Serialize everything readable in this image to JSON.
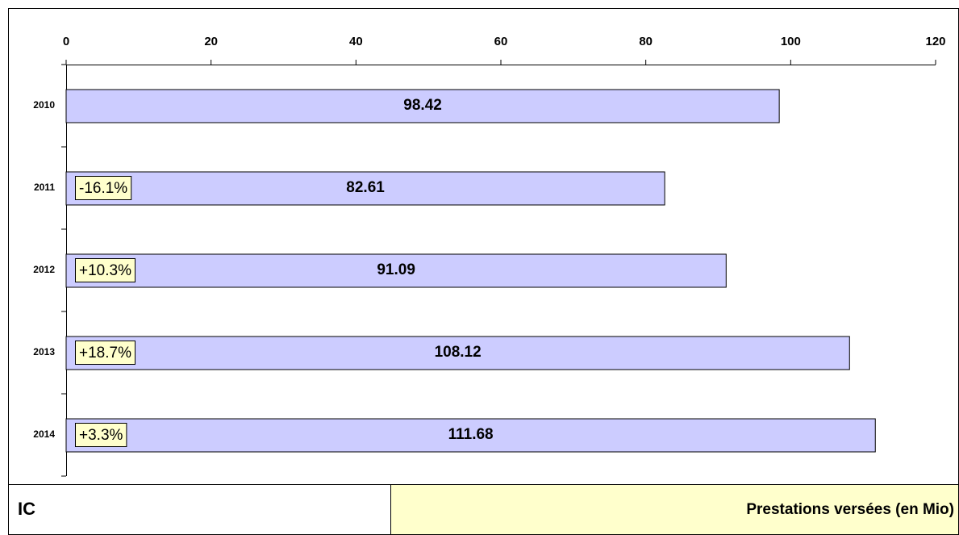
{
  "chart_data": {
    "type": "bar",
    "orientation": "horizontal",
    "categories": [
      "2010",
      "2011",
      "2012",
      "2013",
      "2014"
    ],
    "values": [
      98.42,
      82.61,
      91.09,
      108.12,
      111.68
    ],
    "change_labels": [
      null,
      "-16.1%",
      "+10.3%",
      "+18.7%",
      "+3.3%"
    ],
    "color": "#ccccff",
    "xlim": [
      0,
      120
    ],
    "xticks": [
      0,
      20,
      40,
      60,
      80,
      100,
      120
    ],
    "footer": {
      "left": "IC",
      "right": "Prestations versées (en Mio)"
    }
  }
}
